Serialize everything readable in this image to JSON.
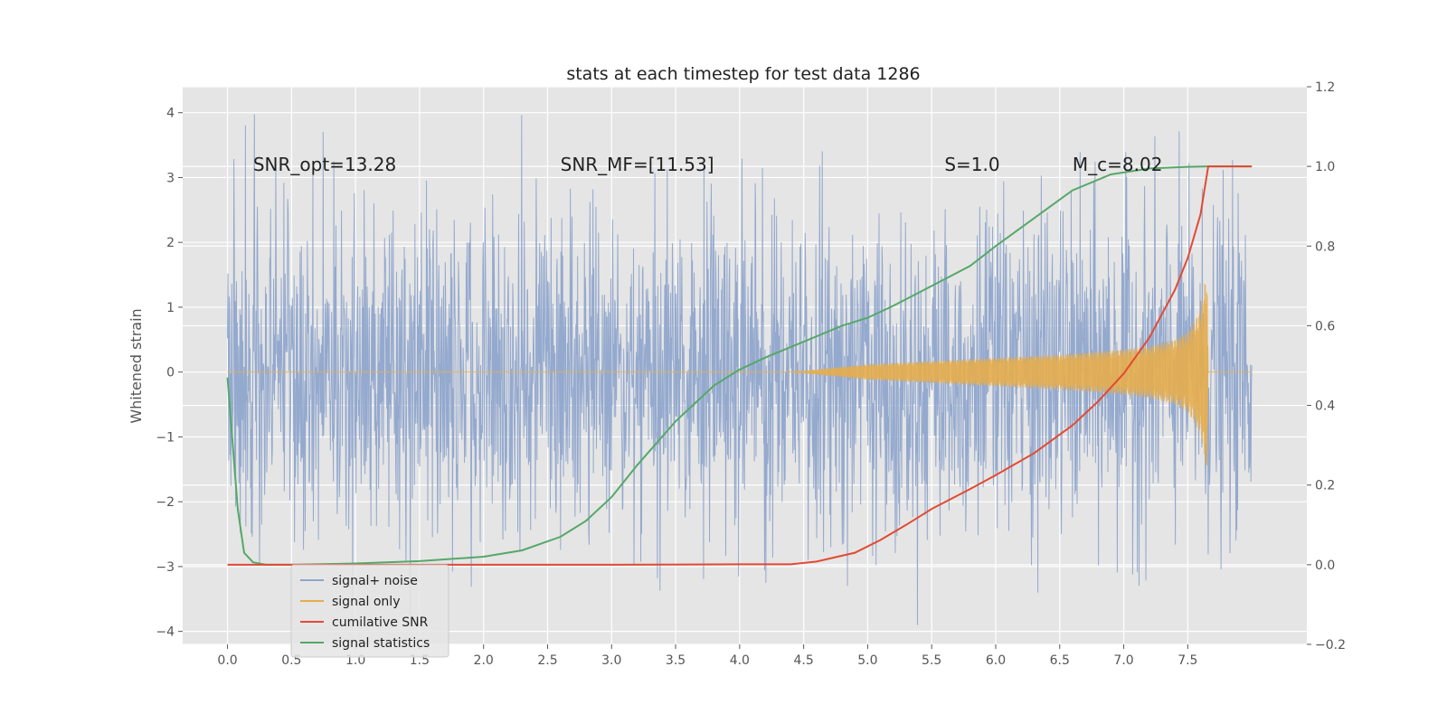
{
  "chart_data": {
    "type": "line",
    "title": "stats at each timestep for test data 1286",
    "ylabel": "Whitened strain",
    "xlim": [
      -0.35,
      8.43
    ],
    "ylim": [
      -4.2,
      4.4
    ],
    "y2lim": [
      -0.2,
      1.2
    ],
    "x_ticks": [
      "0.0",
      "0.5",
      "1.0",
      "1.5",
      "2.0",
      "2.5",
      "3.0",
      "3.5",
      "4.0",
      "4.5",
      "5.0",
      "5.5",
      "6.0",
      "6.5",
      "7.0",
      "7.5"
    ],
    "y_ticks": [
      "−4",
      "−3",
      "−2",
      "−1",
      "0",
      "1",
      "2",
      "3",
      "4"
    ],
    "y2_ticks": [
      "−0.2",
      "0.0",
      "0.2",
      "0.4",
      "0.6",
      "0.8",
      "1.0",
      "1.2"
    ],
    "grid": true,
    "legend_position": "lower-left",
    "annotations": [
      {
        "text": "SNR_opt=13.28",
        "x": 0.2,
        "y": 3.2
      },
      {
        "text": "SNR_MF=[11.53]",
        "x": 2.6,
        "y": 3.2
      },
      {
        "text": "S=1.0",
        "x": 5.6,
        "y": 3.2
      },
      {
        "text": "M_c=8.02",
        "x": 6.6,
        "y": 3.2
      }
    ],
    "series": [
      {
        "name": "signal+ noise",
        "color": "#8fa5cc",
        "axis": "left",
        "x_range": [
          0.0,
          8.0
        ],
        "amplitude_range": [
          -3.9,
          4.0
        ],
        "description_values": {
          "std": 1.0,
          "mean": 0.0
        }
      },
      {
        "name": "signal only",
        "color": "#e6ad4c",
        "axis": "left",
        "x": [
          0.0,
          4.4,
          5.0,
          5.5,
          6.0,
          6.5,
          7.0,
          7.2,
          7.4,
          7.5,
          7.6,
          7.65,
          7.66,
          8.0
        ],
        "envelope": [
          0.0,
          0.0,
          0.12,
          0.17,
          0.22,
          0.27,
          0.35,
          0.4,
          0.5,
          0.62,
          0.95,
          1.6,
          0.0,
          0.0
        ]
      },
      {
        "name": "cumilative SNR",
        "color": "#e24a33",
        "axis": "right",
        "x": [
          0.0,
          1.0,
          2.0,
          3.0,
          4.0,
          4.4,
          4.6,
          4.9,
          5.1,
          5.3,
          5.5,
          5.8,
          6.0,
          6.3,
          6.6,
          6.8,
          7.0,
          7.2,
          7.4,
          7.5,
          7.6,
          7.66,
          8.0
        ],
        "values": [
          0.0,
          0.0,
          0.0,
          0.0,
          0.001,
          0.001,
          0.008,
          0.03,
          0.062,
          0.1,
          0.14,
          0.19,
          0.225,
          0.28,
          0.35,
          0.41,
          0.48,
          0.57,
          0.69,
          0.77,
          0.88,
          1.0,
          1.0
        ]
      },
      {
        "name": "signal statistics",
        "color": "#55a868",
        "axis": "right",
        "x": [
          0.0,
          0.08,
          0.13,
          0.2,
          0.3,
          0.5,
          1.0,
          1.5,
          2.0,
          2.3,
          2.6,
          2.8,
          3.0,
          3.2,
          3.5,
          3.8,
          4.0,
          4.2,
          4.5,
          4.8,
          5.0,
          5.2,
          5.5,
          5.8,
          6.0,
          6.3,
          6.6,
          6.9,
          7.2,
          7.5,
          7.66,
          8.0
        ],
        "values": [
          0.47,
          0.14,
          0.03,
          0.006,
          0.0,
          0.0,
          0.003,
          0.009,
          0.02,
          0.036,
          0.07,
          0.11,
          0.17,
          0.25,
          0.36,
          0.45,
          0.49,
          0.52,
          0.56,
          0.6,
          0.62,
          0.65,
          0.7,
          0.75,
          0.8,
          0.87,
          0.94,
          0.98,
          0.995,
          0.999,
          1.0,
          1.0
        ]
      }
    ]
  }
}
